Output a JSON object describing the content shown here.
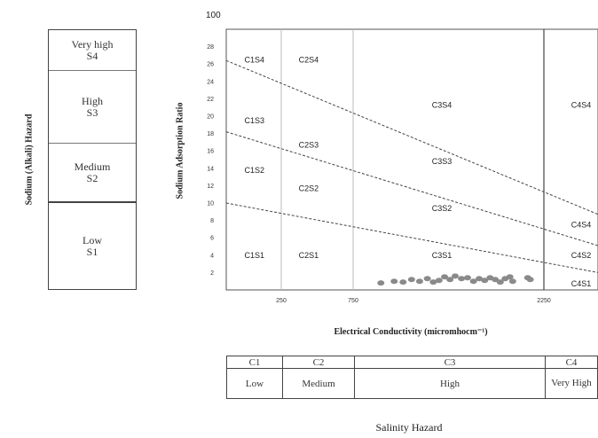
{
  "top_note": "100",
  "sodium_hazard": {
    "axis_title": "Sodium (Alkali) Hazard",
    "classes": [
      {
        "name": "Very high",
        "code": "S4"
      },
      {
        "name": "High",
        "code": "S3"
      },
      {
        "name": "Medium",
        "code": "S2"
      },
      {
        "name": "Low",
        "code": "S1"
      }
    ]
  },
  "salinity_hazard": {
    "title": "Salinity Hazard",
    "classes": [
      {
        "code": "C1",
        "name": "Low"
      },
      {
        "code": "C2",
        "name": "Medium"
      },
      {
        "code": "C3",
        "name": "High"
      },
      {
        "code": "C4",
        "name": "Very High"
      }
    ]
  },
  "chart_data": {
    "type": "scatter",
    "title": "",
    "xlabel": "Electrical Conductivity (micromhocm⁻¹)",
    "ylabel": "Sodium Adsorption Ratio",
    "x_ticks": [
      "250",
      "750",
      "2250"
    ],
    "y_ticks": [
      2,
      4,
      6,
      8,
      10,
      12,
      14,
      16,
      18,
      20,
      22,
      24,
      26,
      28
    ],
    "ylim": [
      0,
      30
    ],
    "grid": false,
    "boundary_lines": [
      {
        "from": {
          "x": 100,
          "y": 26.4
        },
        "to": {
          "x": 5000,
          "y": 8.7
        }
      },
      {
        "from": {
          "x": 100,
          "y": 18.2
        },
        "to": {
          "x": 5000,
          "y": 5.1
        }
      },
      {
        "from": {
          "x": 100,
          "y": 10.0
        },
        "to": {
          "x": 5000,
          "y": 2.0
        }
      }
    ],
    "class_labels": [
      {
        "text": "C1S4",
        "x": 160,
        "y": 26.5
      },
      {
        "text": "C2S4",
        "x": 380,
        "y": 26.5
      },
      {
        "text": "C3S4",
        "x": 1250,
        "y": 21.3
      },
      {
        "text": "C4S4",
        "x": 3900,
        "y": 21.3
      },
      {
        "text": "C1S3",
        "x": 160,
        "y": 19.5
      },
      {
        "text": "C2S3",
        "x": 380,
        "y": 16.7
      },
      {
        "text": "C3S3",
        "x": 1250,
        "y": 14.8
      },
      {
        "text": "C1S2",
        "x": 160,
        "y": 13.8
      },
      {
        "text": "C2S2",
        "x": 380,
        "y": 11.7
      },
      {
        "text": "C3S2",
        "x": 1250,
        "y": 9.4
      },
      {
        "text": "C4S4",
        "x": 3900,
        "y": 7.5
      },
      {
        "text": "C1S1",
        "x": 160,
        "y": 4.0
      },
      {
        "text": "C2S1",
        "x": 380,
        "y": 4.0
      },
      {
        "text": "C3S1",
        "x": 1250,
        "y": 4.0
      },
      {
        "text": "C4S2",
        "x": 3900,
        "y": 4.0
      },
      {
        "text": "C4S1",
        "x": 3900,
        "y": 0.7
      }
    ],
    "points": [
      {
        "x": 880,
        "y": 0.8
      },
      {
        "x": 950,
        "y": 1.0
      },
      {
        "x": 1000,
        "y": 0.9
      },
      {
        "x": 1050,
        "y": 1.2
      },
      {
        "x": 1100,
        "y": 1.0
      },
      {
        "x": 1150,
        "y": 1.3
      },
      {
        "x": 1190,
        "y": 0.9
      },
      {
        "x": 1230,
        "y": 1.1
      },
      {
        "x": 1270,
        "y": 1.5
      },
      {
        "x": 1310,
        "y": 1.2
      },
      {
        "x": 1350,
        "y": 1.6
      },
      {
        "x": 1400,
        "y": 1.3
      },
      {
        "x": 1450,
        "y": 1.4
      },
      {
        "x": 1500,
        "y": 1.0
      },
      {
        "x": 1550,
        "y": 1.3
      },
      {
        "x": 1600,
        "y": 1.1
      },
      {
        "x": 1650,
        "y": 1.4
      },
      {
        "x": 1700,
        "y": 1.2
      },
      {
        "x": 1750,
        "y": 0.9
      },
      {
        "x": 1800,
        "y": 1.3
      },
      {
        "x": 1850,
        "y": 1.5
      },
      {
        "x": 1880,
        "y": 1.0
      },
      {
        "x": 2050,
        "y": 1.4
      },
      {
        "x": 2080,
        "y": 1.2
      }
    ]
  }
}
